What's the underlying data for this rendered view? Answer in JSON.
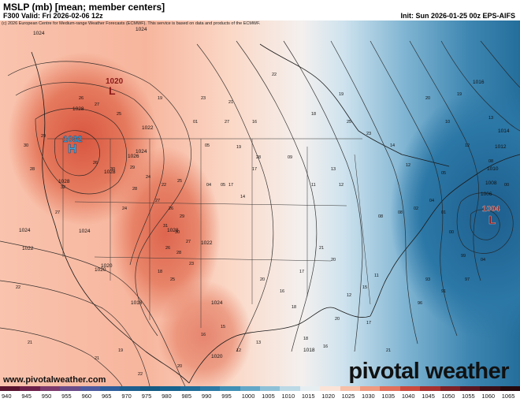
{
  "header": {
    "title": "MSLP (mb) [mean; member centers]",
    "valid": "F300 Valid: Fri 2026-02-06 12z",
    "init": "Init: Sun 2026-01-25 00z EPS-AIFS",
    "copyright": "(c) 2026 European Centre for Medium-range Weather Forecasts (ECMWF). This service is based on data and products of the ECMWF."
  },
  "footer": {
    "url": "www.pivotalweather.com",
    "logo": "pivotal weather"
  },
  "pressure_centers": [
    {
      "type": "H",
      "value": "1032",
      "color": "#3fa9e0"
    },
    {
      "type": "L",
      "value": "1020",
      "color": "#8b1a1a"
    },
    {
      "type": "L",
      "value": "1004",
      "color": "#8b1a1a"
    }
  ],
  "contour_labels": [
    "1024",
    "1024",
    "1022",
    "1028",
    "1024",
    "1028",
    "1028",
    "1026",
    "1024",
    "1024",
    "1022",
    "1020",
    "1018",
    "1024",
    "1022",
    "1020",
    "1018",
    "1016",
    "1014",
    "1012",
    "1010",
    "1008",
    "1006",
    "1020",
    "1028"
  ],
  "colorbar": {
    "labels": [
      "940",
      "945",
      "950",
      "955",
      "960",
      "965",
      "970",
      "975",
      "980",
      "985",
      "990",
      "995",
      "1000",
      "1005",
      "1010",
      "1015",
      "1020",
      "1025",
      "1030",
      "1035",
      "1040",
      "1045",
      "1050",
      "1055",
      "1060",
      "1065"
    ],
    "colors": [
      "#5a1430",
      "#6d1f4a",
      "#7c3a6e",
      "#6a4c8a",
      "#4d5aa0",
      "#2f5e9c",
      "#1d5f8f",
      "#145a84",
      "#17638f",
      "#1f6d99",
      "#2b7aa6",
      "#4090b6",
      "#64a8c8",
      "#8ec1d8",
      "#bcd9e6",
      "#e6eef2",
      "#fbe3d8",
      "#f7c0a8",
      "#f09a80",
      "#e2705a",
      "#cc4a3c",
      "#a8302e",
      "#7e2026",
      "#5a1620",
      "#3a0e16",
      "#24080c"
    ]
  }
}
